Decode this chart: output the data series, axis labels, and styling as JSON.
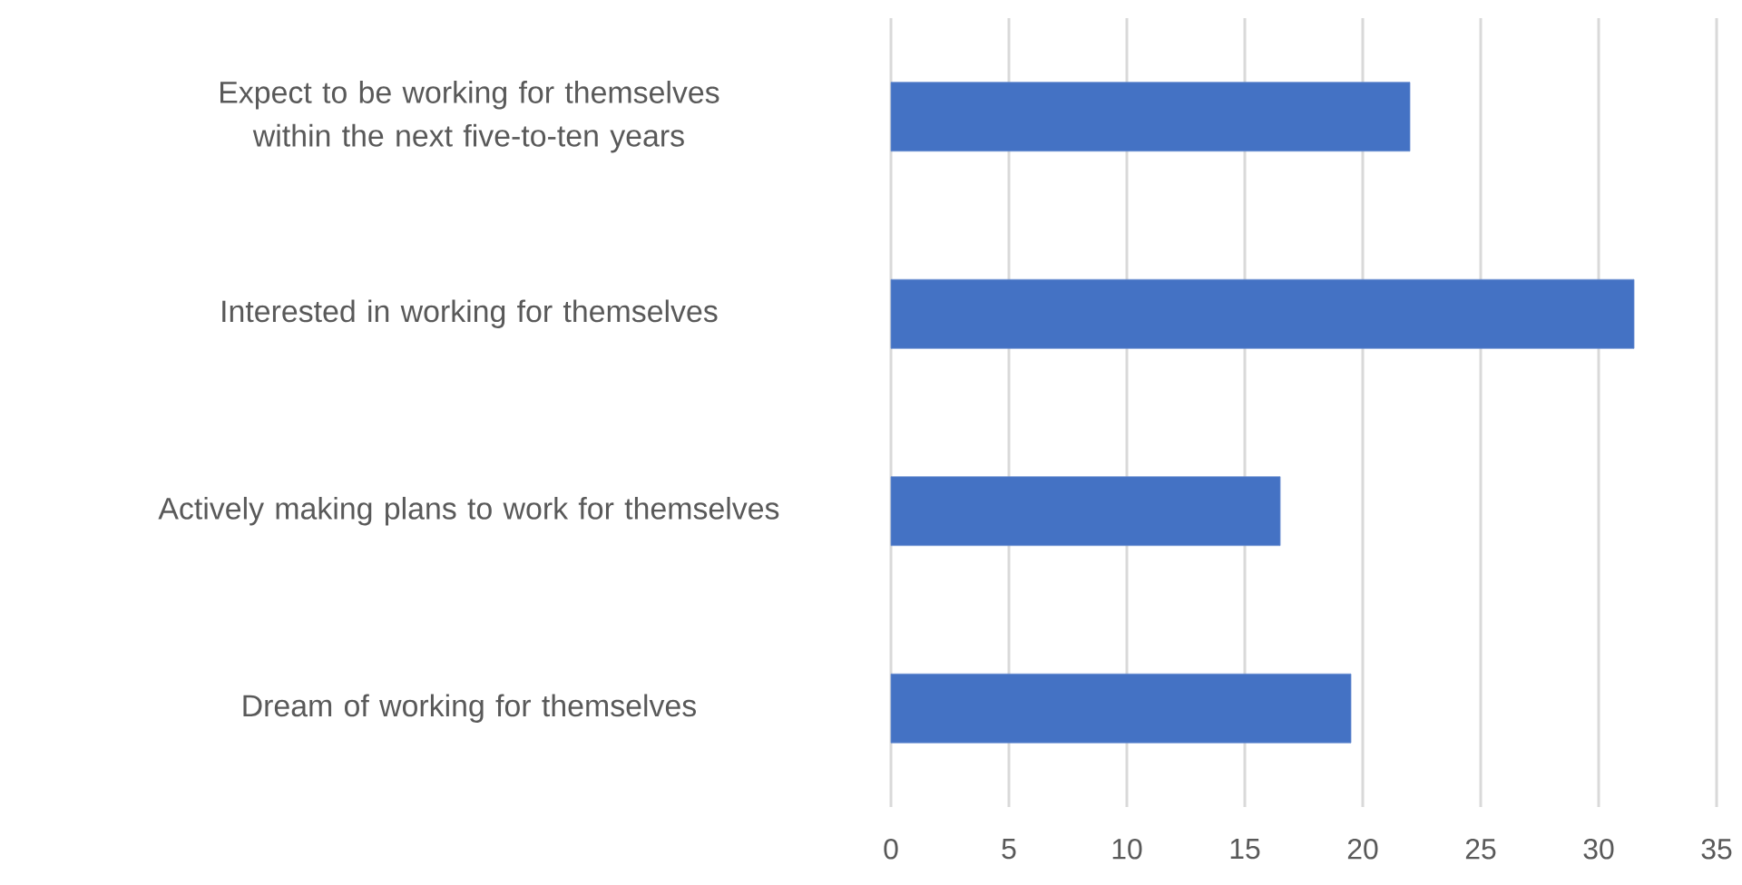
{
  "chart_data": {
    "type": "bar",
    "orientation": "horizontal",
    "categories": [
      "Expect to be working for themselves within the next five-to-ten years",
      "Interested in working for themselves",
      "Actively making plans to work for themselves",
      "Dream of working for themselves"
    ],
    "values": [
      22,
      31.5,
      16.5,
      19.5
    ],
    "color": "#4472c4",
    "xlim": [
      0,
      35
    ],
    "xticks": [
      0,
      5,
      10,
      15,
      20,
      25,
      30,
      35
    ],
    "grid": "x"
  }
}
